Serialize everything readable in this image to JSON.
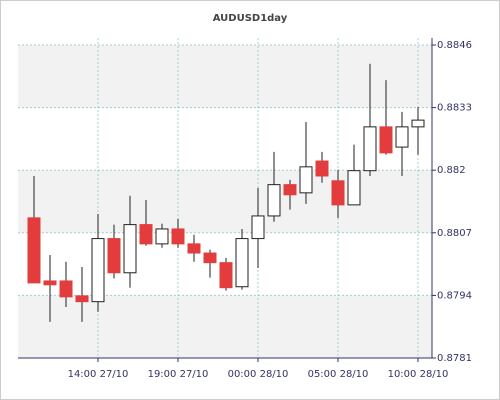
{
  "chart_data": {
    "type": "candlestick",
    "title": "AUDUSD1day",
    "categories": [
      null,
      null,
      null,
      null,
      "14:00 27/10",
      null,
      null,
      null,
      null,
      "19:00 27/10",
      null,
      null,
      null,
      null,
      "00:00 28/10",
      null,
      null,
      null,
      null,
      "05:00 28/10",
      null,
      null,
      null,
      null,
      "10:00 28/10"
    ],
    "open": [
      0.88101,
      0.8797,
      0.8797,
      0.87939,
      0.87927,
      0.88058,
      0.87987,
      0.88087,
      0.88047,
      0.88078,
      0.88047,
      0.88028,
      0.88008,
      0.87958,
      0.88058,
      0.88105,
      0.8817,
      0.88153,
      0.88219,
      0.88178,
      0.88128,
      0.88199,
      0.8829,
      0.88248,
      0.8829
    ],
    "high": [
      0.88188,
      0.88024,
      0.8801,
      0.87999,
      0.88109,
      0.88087,
      0.88147,
      0.88138,
      0.88089,
      0.88099,
      0.88066,
      0.88035,
      0.88018,
      0.88078,
      0.88163,
      0.88238,
      0.8818,
      0.883,
      0.88238,
      0.88201,
      0.88253,
      0.88421,
      0.88387,
      0.88321,
      0.88331
    ],
    "low": [
      0.87966,
      0.87885,
      0.87916,
      0.87885,
      0.87906,
      0.87975,
      0.87956,
      0.88043,
      0.88039,
      0.88039,
      0.8801,
      0.87977,
      0.8795,
      0.87952,
      0.87997,
      0.88093,
      0.88118,
      0.8813,
      0.88174,
      0.88101,
      0.88128,
      0.88188,
      0.88232,
      0.88188,
      0.88232
    ],
    "close": [
      0.87966,
      0.87962,
      0.87937,
      0.87927,
      0.88058,
      0.87987,
      0.88087,
      0.88047,
      0.88078,
      0.88047,
      0.88028,
      0.88008,
      0.87956,
      0.88058,
      0.88105,
      0.8817,
      0.88149,
      0.88207,
      0.88188,
      0.88128,
      0.88199,
      0.8829,
      0.88236,
      0.8829,
      0.88304
    ],
    "up_color": "#ffffff",
    "down_color": "#e23c3c",
    "ylim": [
      0.8781,
      0.8846
    ],
    "yticks": [
      0.8781,
      0.8794,
      0.8807,
      0.882,
      0.8833,
      0.8846
    ],
    "grid": true
  }
}
